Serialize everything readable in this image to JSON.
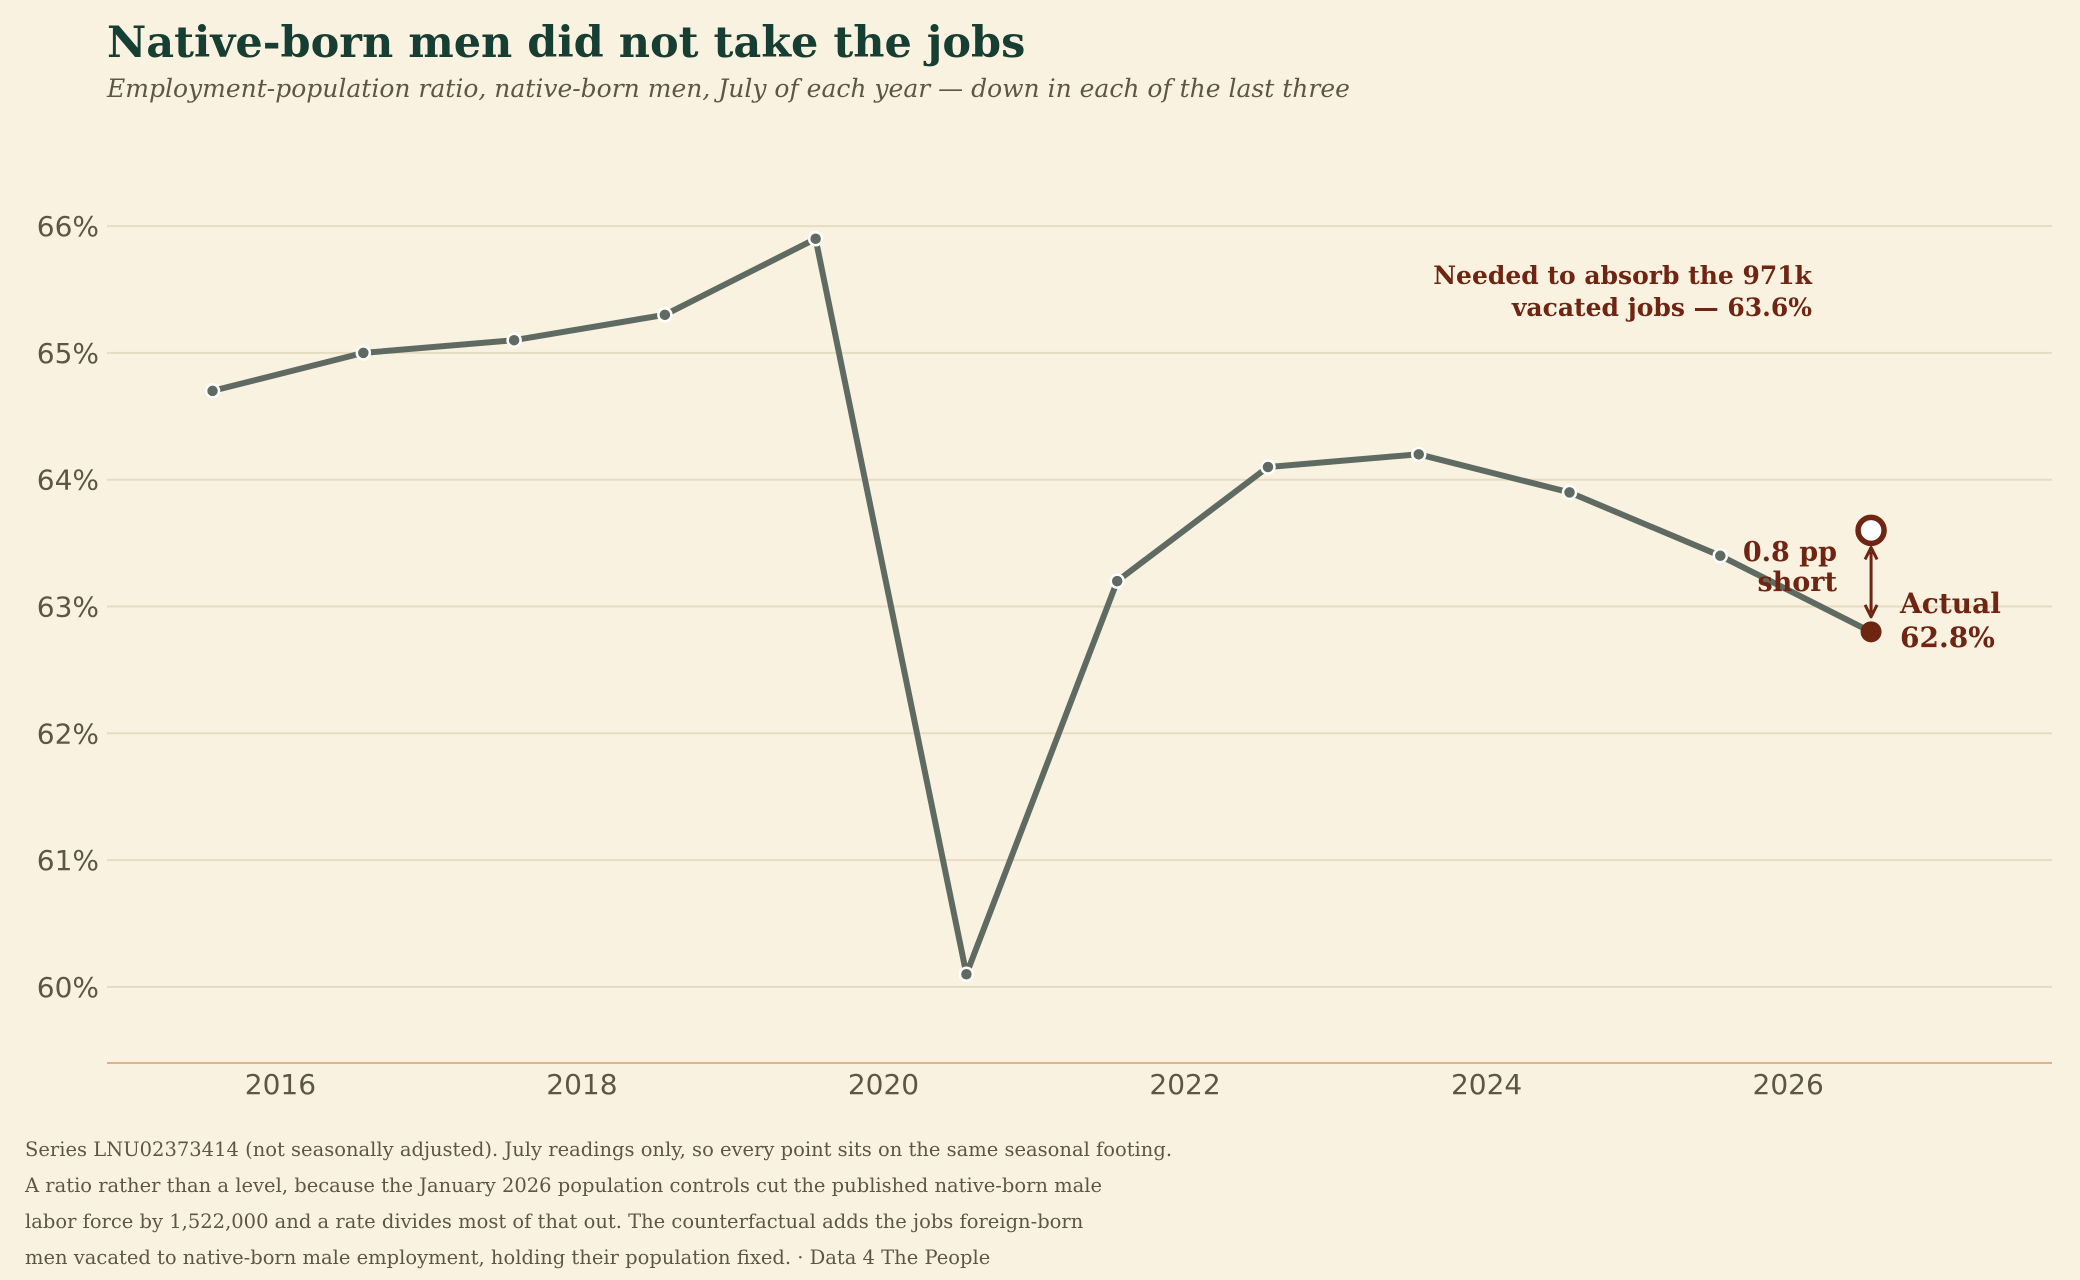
{
  "title": "Native-born men did not take the jobs",
  "subtitle": "Employment-population ratio, native-born men, July of each year — down in each of the last three",
  "footnote_lines": [
    "Series LNU02373414 (not seasonally adjusted). July readings only, so every point sits on the same seasonal footing.",
    "A ratio rather than a level, because the January 2026 population controls cut the published native-born male",
    "labor force by 1,522,000 and a rate divides most of that out. The counterfactual adds the jobs foreign-born",
    "men vacated to native-born male employment, holding their population fixed. · Data 4 The People"
  ],
  "colors": {
    "background": "#faf2e0",
    "series": "#5f6b62",
    "accent": "#6e2512",
    "grid": "#e6dcc2",
    "axis": "#d9b48c",
    "tick_text": "#5d5648",
    "title": "#163e33"
  },
  "chart_data": {
    "type": "line",
    "x_unit": "year (July readings)",
    "x": [
      2015.55,
      2016.55,
      2017.55,
      2018.55,
      2019.55,
      2020.55,
      2021.55,
      2022.55,
      2023.55,
      2024.55,
      2025.55,
      2026.55
    ],
    "y": [
      64.7,
      65.0,
      65.1,
      65.3,
      65.9,
      60.1,
      63.2,
      64.1,
      64.2,
      63.9,
      63.4,
      62.8
    ],
    "ylim": [
      59.4,
      66.6
    ],
    "xlim": [
      2014.85,
      2027.75
    ],
    "yticks": [
      60,
      61,
      62,
      63,
      64,
      65,
      66
    ],
    "ytick_labels": [
      "60%",
      "61%",
      "62%",
      "63%",
      "64%",
      "65%",
      "66%"
    ],
    "xticks": [
      2016,
      2018,
      2020,
      2022,
      2024,
      2026
    ],
    "xtick_labels": [
      "2016",
      "2018",
      "2020",
      "2022",
      "2024",
      "2026"
    ],
    "grid": "horizontal",
    "counterfactual": {
      "x": 2026.55,
      "y": 63.6,
      "label_lines": [
        "Needed to absorb the 971k",
        "vacated jobs — 63.6%"
      ]
    },
    "actual": {
      "x": 2026.55,
      "y": 62.8,
      "label_lines": [
        "Actual",
        "62.8%"
      ]
    },
    "gap": {
      "value": 0.8,
      "label_lines": [
        "0.8 pp",
        "short"
      ]
    }
  }
}
